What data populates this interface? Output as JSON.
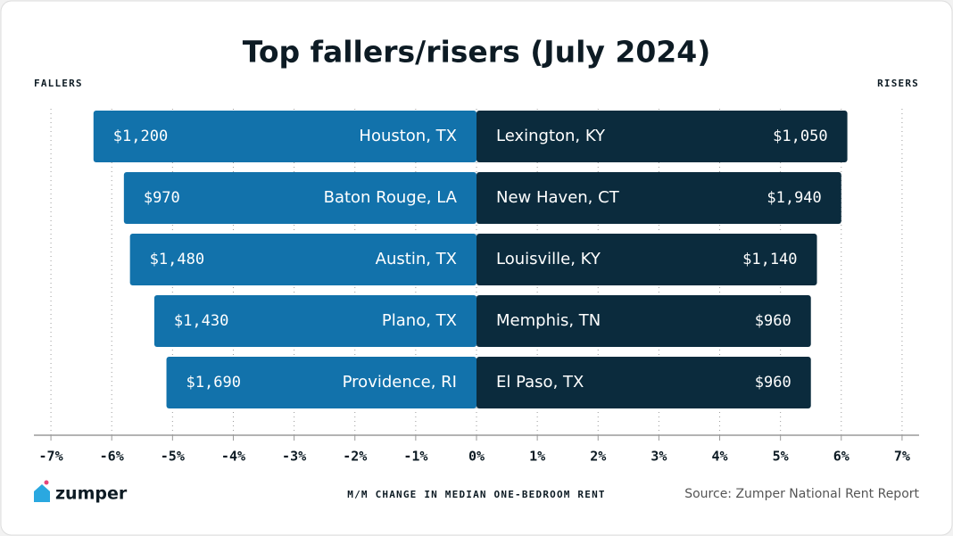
{
  "chart_data": {
    "type": "diverging_bar",
    "title": "Top fallers/risers (July 2024)",
    "x_label": "M/M CHANGE IN MEDIAN ONE-BEDROOM RENT",
    "source": "Source: Zumper National Rent Report",
    "brand": "zumper",
    "series": [
      {
        "name": "FALLERS",
        "color": "#1272ab",
        "cities": [
          "Houston, TX",
          "Baton Rouge, LA",
          "Austin, TX",
          "Plano, TX",
          "Providence, RI"
        ],
        "rents": [
          "$1,200",
          "$970",
          "$1,480",
          "$1,430",
          "$1,690"
        ],
        "values": [
          -6.3,
          -5.8,
          -5.7,
          -5.3,
          -5.1
        ]
      },
      {
        "name": "RISERS",
        "color": "#0b2b3d",
        "cities": [
          "Lexington, KY",
          "New Haven, CT",
          "Louisville, KY",
          "Memphis, TN",
          "El Paso, TX"
        ],
        "rents": [
          "$1,050",
          "$1,940",
          "$1,140",
          "$960",
          "$960"
        ],
        "values": [
          6.1,
          6.0,
          5.6,
          5.5,
          5.5
        ]
      }
    ],
    "xlim": [
      -7.28,
      7.28
    ],
    "xticks": [
      {
        "value": -7,
        "label": "-7%"
      },
      {
        "value": -6,
        "label": "-6%"
      },
      {
        "value": -5,
        "label": "-5%"
      },
      {
        "value": -4,
        "label": "-4%"
      },
      {
        "value": -3,
        "label": "-3%"
      },
      {
        "value": -2,
        "label": "-2%"
      },
      {
        "value": -1,
        "label": "-1%"
      },
      {
        "value": 0,
        "label": "0%"
      },
      {
        "value": 1,
        "label": "1%"
      },
      {
        "value": 2,
        "label": "2%"
      },
      {
        "value": 3,
        "label": "3%"
      },
      {
        "value": 4,
        "label": "4%"
      },
      {
        "value": 5,
        "label": "5%"
      },
      {
        "value": 6,
        "label": "6%"
      },
      {
        "value": 7,
        "label": "7%"
      }
    ],
    "grid": true
  }
}
